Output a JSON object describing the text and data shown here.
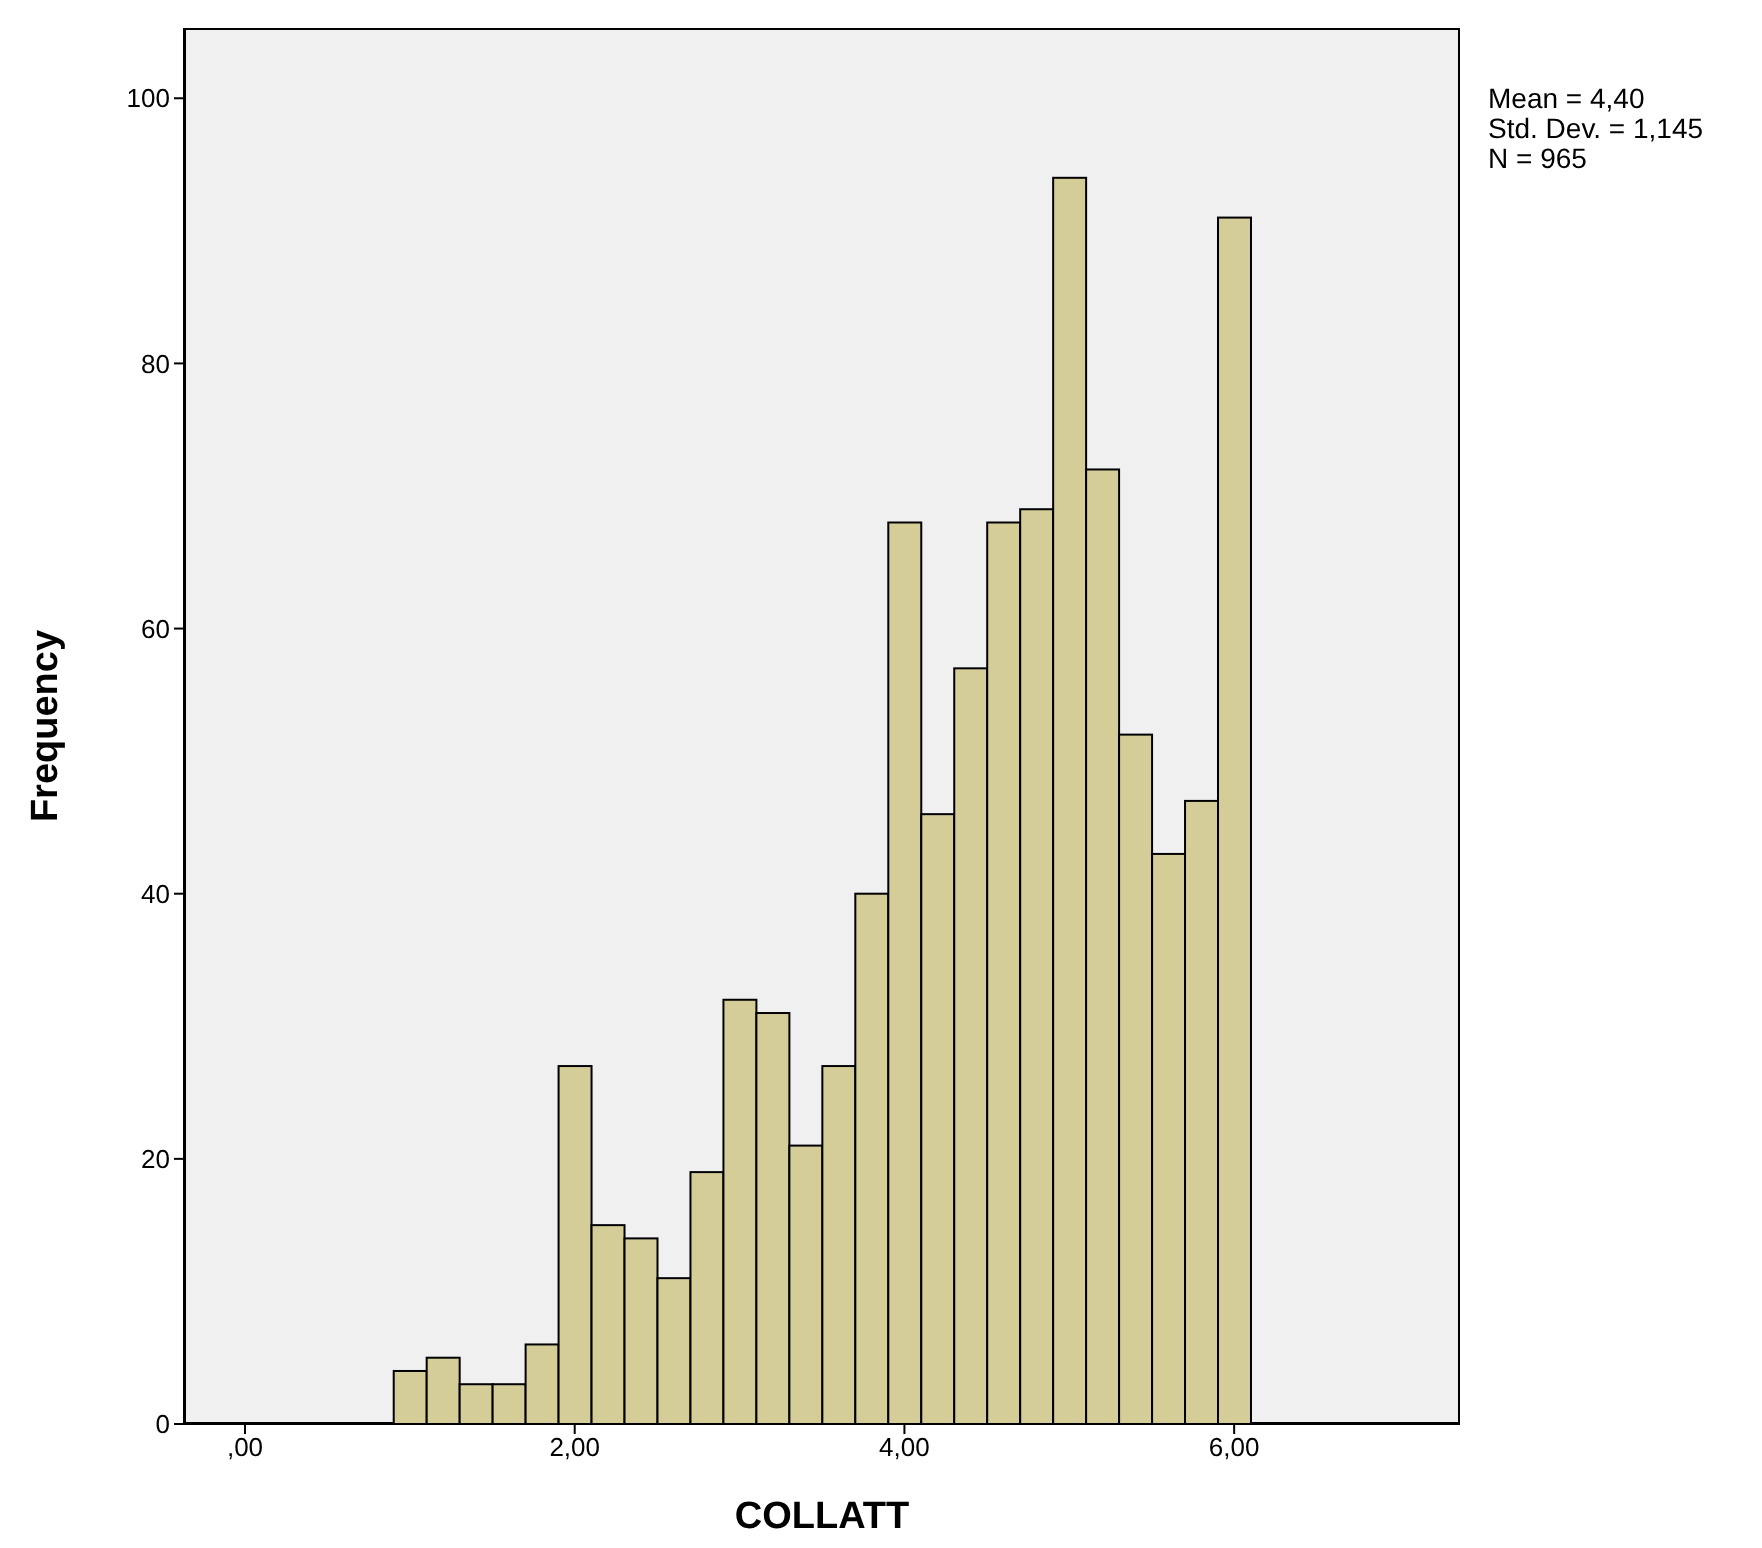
{
  "chart_data": {
    "type": "histogram",
    "xlabel": "COLLATT",
    "ylabel": "Frequency",
    "bins": [
      0.9,
      1.1,
      1.3,
      1.5,
      1.7,
      1.9,
      2.1,
      2.3,
      2.5,
      2.7,
      2.9,
      3.1,
      3.3,
      3.5,
      3.7,
      3.9,
      4.1,
      4.3,
      4.5,
      4.7,
      4.9,
      5.1,
      5.3,
      5.5,
      5.7,
      5.9,
      6.1
    ],
    "values": [
      4,
      5,
      3,
      3,
      6,
      27,
      15,
      14,
      11,
      19,
      32,
      31,
      21,
      27,
      40,
      68,
      46,
      57,
      68,
      69,
      94,
      72,
      52,
      43,
      47,
      91
    ],
    "color": "#d5cd98",
    "xlim": [
      -0.37,
      7.37
    ],
    "xticks": [
      {
        "value": 0,
        "label": ",00"
      },
      {
        "value": 2,
        "label": "2,00"
      },
      {
        "value": 4,
        "label": "4,00"
      },
      {
        "value": 6,
        "label": "6,00"
      }
    ],
    "ylim": [
      0,
      105.3
    ],
    "yticks": [
      0,
      20,
      40,
      60,
      80,
      100
    ],
    "grid": false,
    "annotations": [
      "Mean = 4,40",
      "Std. Dev. = 1,145",
      "N = 965"
    ]
  }
}
